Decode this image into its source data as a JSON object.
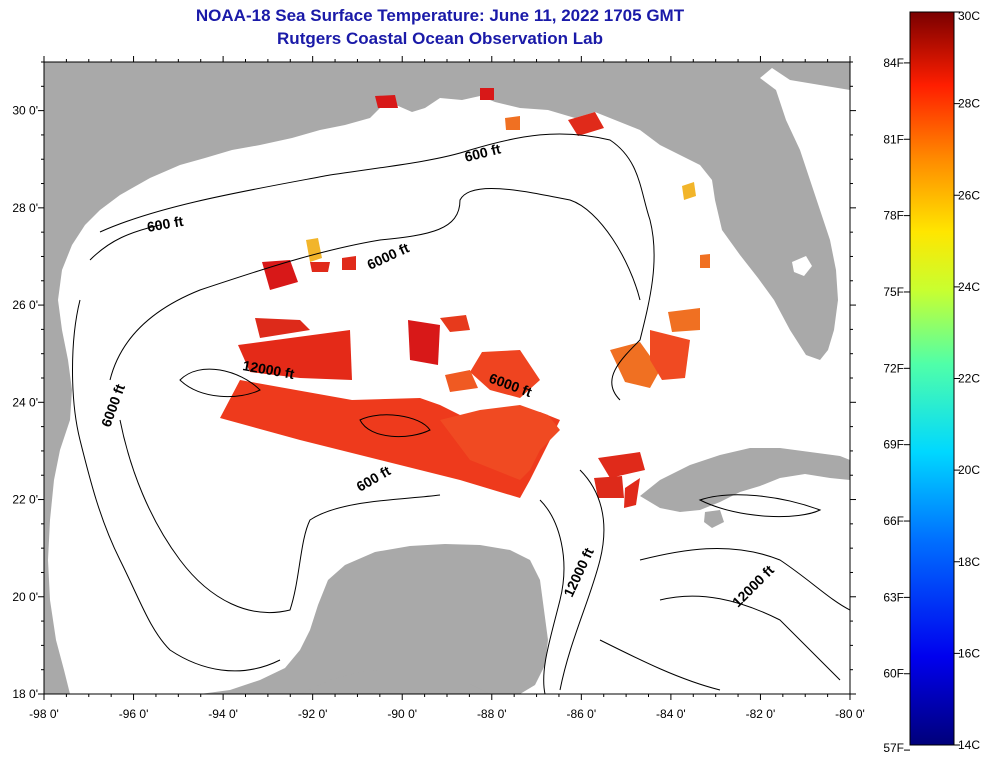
{
  "header": {
    "title": "NOAA-18 Sea Surface Temperature:  June 11, 2022 1705 GMT",
    "subtitle": "Rutgers Coastal Ocean Observation Lab"
  },
  "map": {
    "lon_range": [
      -98,
      -80
    ],
    "lat_range": [
      18,
      31
    ],
    "x_ticks": [
      "-98 0'",
      "-96 0'",
      "-94 0'",
      "-92 0'",
      "-90 0'",
      "-88 0'",
      "-86 0'",
      "-84 0'",
      "-82 0'",
      "-80 0'"
    ],
    "y_ticks": [
      "30 0'",
      "28 0'",
      "26 0'",
      "24 0'",
      "22 0'",
      "20 0'",
      "18 0'"
    ],
    "contour_labels": [
      "600 ft",
      "600 ft",
      "600 ft",
      "6000 ft",
      "6000 ft",
      "6000 ft",
      "12000 ft",
      "12000 ft",
      "12000 ft"
    ],
    "colors": {
      "land": "#a9a9a9",
      "water": "#ffffff",
      "sst_warm": "#ee3a1c",
      "sst_hot": "#d81818",
      "sst_mid": "#f07022",
      "sst_yellow": "#f2b52a"
    }
  },
  "colorbar": {
    "celsius_labels": [
      "30C",
      "28C",
      "26C",
      "24C",
      "22C",
      "20C",
      "18C",
      "16C",
      "14C"
    ],
    "fahrenheit_labels": [
      "84F",
      "81F",
      "78F",
      "75F",
      "72F",
      "69F",
      "66F",
      "63F",
      "60F",
      "57F"
    ],
    "celsius_values": [
      30,
      28,
      26,
      24,
      22,
      20,
      18,
      16,
      14
    ],
    "fahrenheit_values": [
      84,
      81,
      78,
      75,
      72,
      69,
      66,
      63,
      60,
      57
    ]
  }
}
